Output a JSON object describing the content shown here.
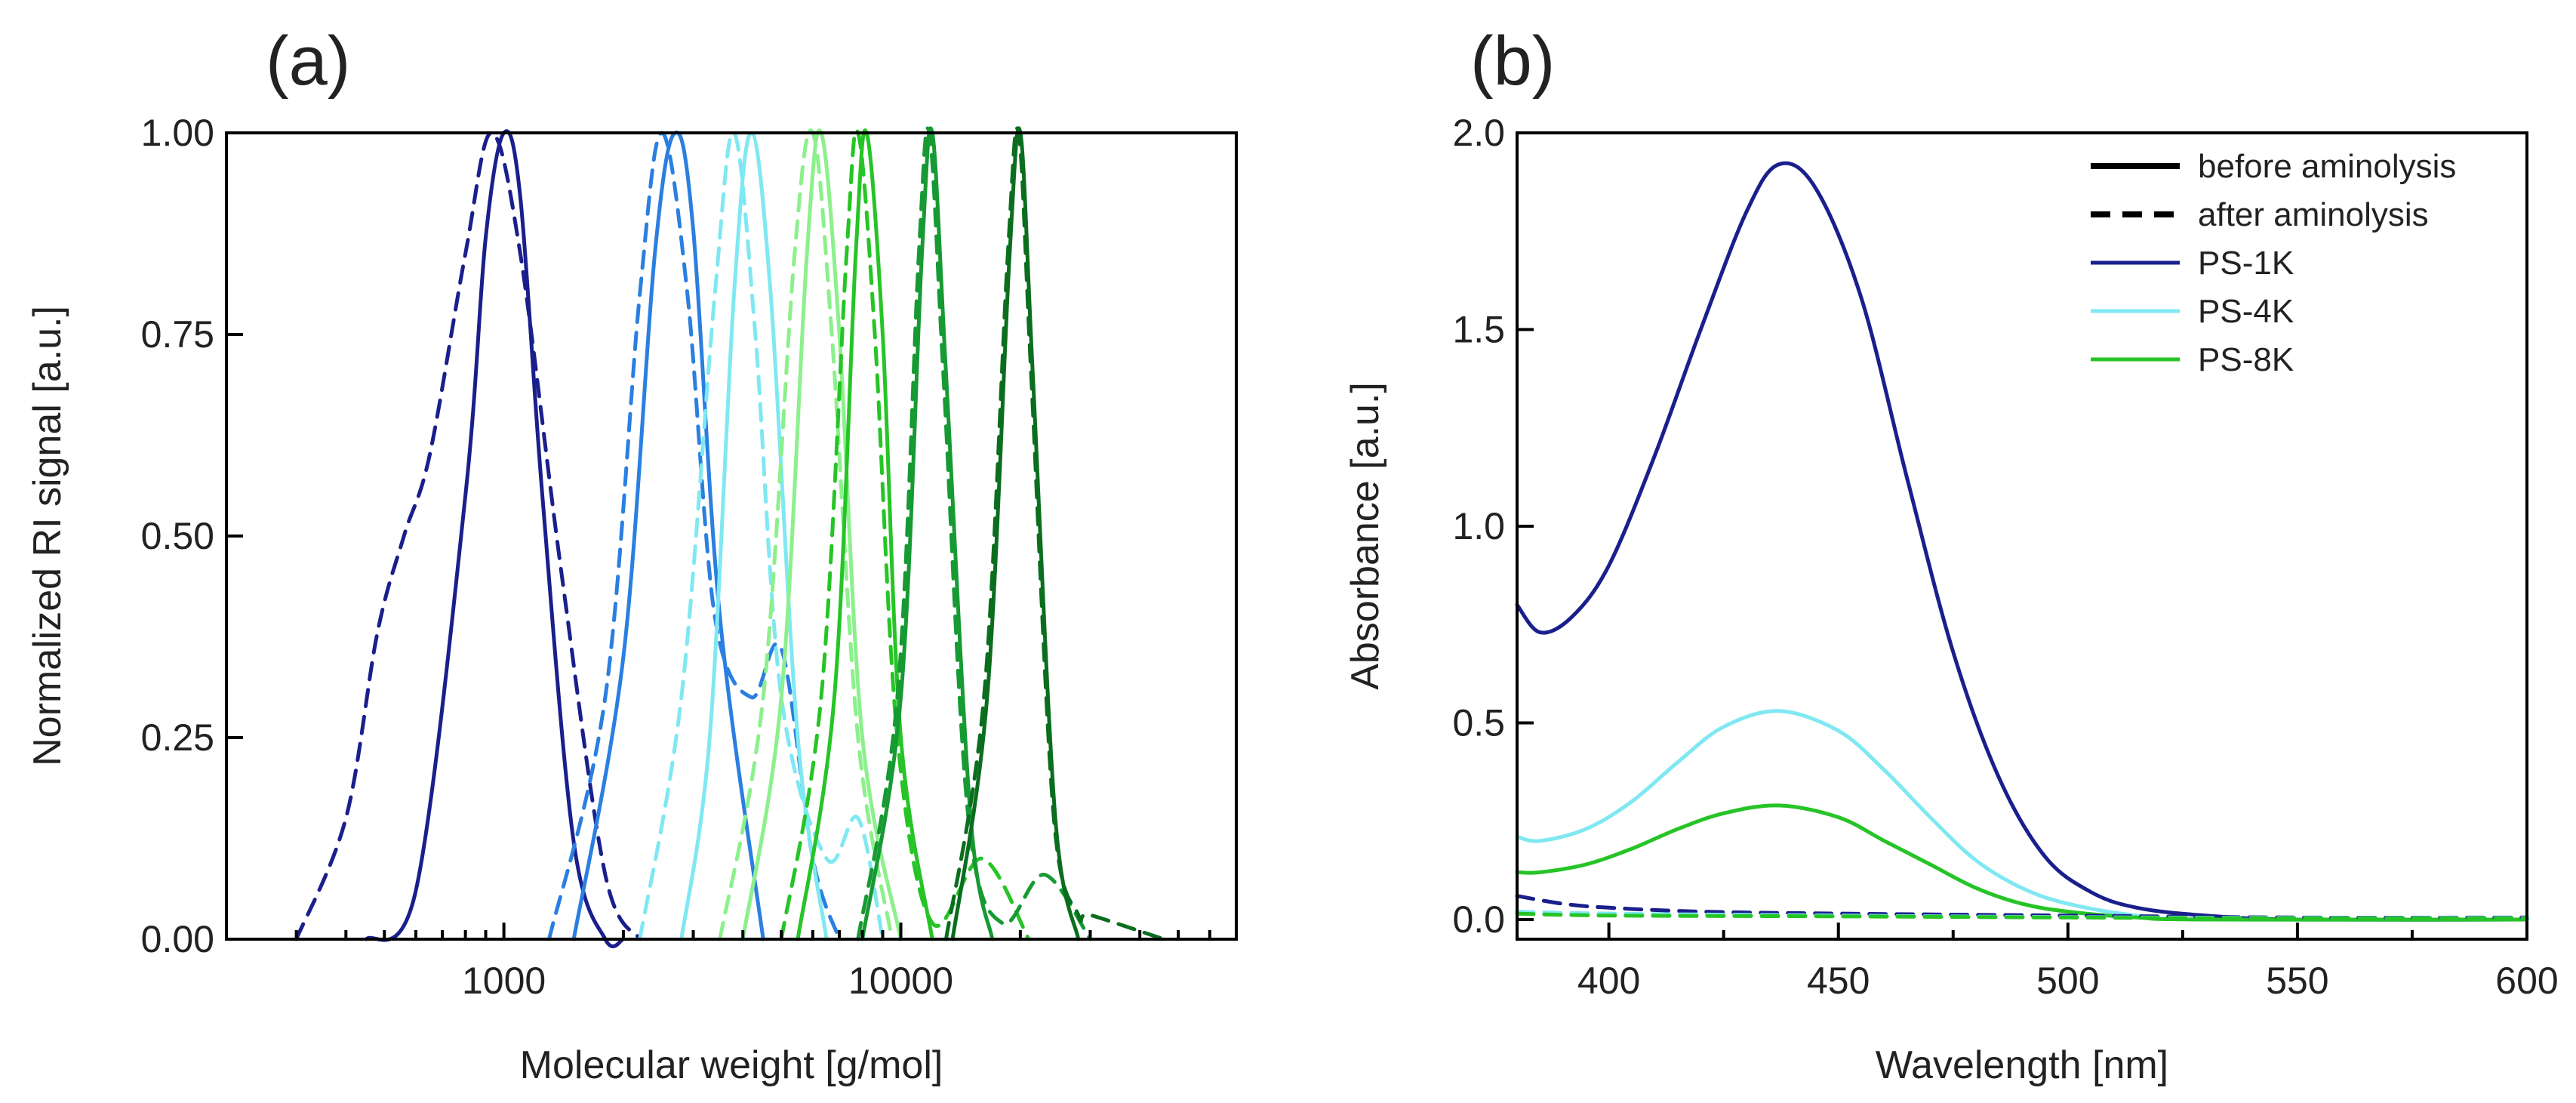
{
  "figure": {
    "panel_a_label": "(a)",
    "panel_b_label": "(b)"
  },
  "colors": {
    "navy": "#1a1f8c",
    "blue": "#2a7fe0",
    "cyan": "#7fe8f2",
    "lightgreen": "#8cf08c",
    "green": "#26c426",
    "midgreen": "#179a33",
    "darkgreen": "#0b6e1e"
  },
  "chart_data": [
    {
      "panel": "(a)",
      "type": "line",
      "xlabel": "Molecular weight [g/mol]",
      "ylabel": "Normalized RI signal [a.u.]",
      "xscale": "log",
      "xlim": [
        200,
        70000
      ],
      "ylim": [
        0,
        1
      ],
      "x_ticks": [
        1000,
        10000
      ],
      "x_tick_labels": [
        "1000",
        "10000"
      ],
      "y_ticks": [
        0,
        0.25,
        0.5,
        0.75,
        1.0
      ],
      "y_tick_labels": [
        "0.00",
        "0.25",
        "0.50",
        "0.75",
        "1.00"
      ],
      "grid": false,
      "line_styles": [
        "solid",
        "dashed"
      ],
      "series": [
        {
          "style": "solid",
          "color": "navy",
          "peak_mw": 1000,
          "width_decades": 0.085,
          "x": [
            450,
            600,
            800,
            900,
            1000,
            1100,
            1250,
            1500,
            1800,
            2000
          ],
          "y": [
            0.0,
            0.06,
            0.55,
            0.87,
            1.0,
            0.92,
            0.55,
            0.12,
            0.0,
            0.0
          ]
        },
        {
          "style": "dashed",
          "color": "navy",
          "peak_mw": 930,
          "shoulder": "low-mw",
          "x": [
            300,
            400,
            480,
            560,
            650,
            800,
            930,
            1100,
            1400,
            1800,
            2200
          ],
          "y": [
            0.0,
            0.15,
            0.38,
            0.5,
            0.6,
            0.85,
            1.0,
            0.85,
            0.45,
            0.08,
            0.0
          ]
        },
        {
          "style": "solid",
          "color": "blue",
          "peak_mw": 2700,
          "width_decades": 0.09,
          "x": [
            1500,
            2000,
            2400,
            2700,
            3000,
            3500,
            4500
          ],
          "y": [
            0.0,
            0.35,
            0.85,
            1.0,
            0.88,
            0.4,
            0.0
          ]
        },
        {
          "style": "dashed",
          "color": "blue",
          "peak_mw": 2500,
          "secondary_peak_mw": 5000,
          "secondary_height": 0.36,
          "x": [
            1300,
            1800,
            2200,
            2500,
            2900,
            3400,
            4200,
            5000,
            6000,
            7000
          ],
          "y": [
            0.0,
            0.3,
            0.8,
            1.0,
            0.8,
            0.4,
            0.3,
            0.36,
            0.1,
            0.0
          ]
        },
        {
          "style": "solid",
          "color": "cyan",
          "peak_mw": 4200,
          "width_decades": 0.07,
          "x": [
            2800,
            3300,
            3800,
            4200,
            4700,
            5500,
            6500
          ],
          "y": [
            0.0,
            0.25,
            0.8,
            1.0,
            0.8,
            0.25,
            0.0
          ]
        },
        {
          "style": "dashed",
          "color": "cyan",
          "peak_mw": 3800,
          "secondary_peak_mw": 7800,
          "secondary_height": 0.15,
          "x": [
            2200,
            2800,
            3400,
            3800,
            4300,
            5000,
            6500,
            7800,
            9000
          ],
          "y": [
            0.0,
            0.3,
            0.8,
            1.0,
            0.75,
            0.3,
            0.1,
            0.15,
            0.0
          ]
        },
        {
          "style": "solid",
          "color": "lightgreen",
          "peak_mw": 6300,
          "width_decades": 0.07,
          "x": [
            4000,
            5000,
            5800,
            6300,
            7000,
            8000,
            10000
          ],
          "y": [
            0.0,
            0.3,
            0.85,
            1.0,
            0.75,
            0.25,
            0.0
          ]
        },
        {
          "style": "dashed",
          "color": "lightgreen",
          "peak_mw": 6000,
          "x": [
            3500,
            4500,
            5400,
            6000,
            6700,
            7800,
            9500
          ],
          "y": [
            0.0,
            0.3,
            0.85,
            1.0,
            0.75,
            0.25,
            0.0
          ]
        },
        {
          "style": "solid",
          "color": "green",
          "peak_mw": 8200,
          "width_decades": 0.065,
          "x": [
            5500,
            6800,
            7700,
            8200,
            9000,
            10000,
            12000
          ],
          "y": [
            0.0,
            0.3,
            0.85,
            1.0,
            0.75,
            0.25,
            0.0
          ]
        },
        {
          "style": "dashed",
          "color": "green",
          "peak_mw": 7800,
          "secondary_peak_mw": 16000,
          "secondary_height": 0.1,
          "x": [
            5000,
            6300,
            7300,
            7800,
            8600,
            9800,
            12000,
            16000,
            21000
          ],
          "y": [
            0.0,
            0.3,
            0.85,
            1.0,
            0.75,
            0.25,
            0.02,
            0.1,
            0.0
          ]
        },
        {
          "style": "solid",
          "color": "midgreen",
          "peak_mw": 12000,
          "width_decades": 0.06,
          "x": [
            8000,
            10000,
            11300,
            12000,
            13000,
            15000,
            17000
          ],
          "y": [
            0.0,
            0.3,
            0.85,
            1.0,
            0.7,
            0.15,
            0.0
          ]
        },
        {
          "style": "dashed",
          "color": "midgreen",
          "peak_mw": 11800,
          "secondary_peak_mw": 23000,
          "secondary_height": 0.08,
          "x": [
            7800,
            9800,
            11100,
            11800,
            12800,
            14800,
            18000,
            23000,
            30000
          ],
          "y": [
            0.0,
            0.3,
            0.85,
            1.0,
            0.7,
            0.15,
            0.02,
            0.08,
            0.0
          ]
        },
        {
          "style": "solid",
          "color": "darkgreen",
          "peak_mw": 20000,
          "width_decades": 0.055,
          "x": [
            13500,
            16500,
            18800,
            20000,
            21500,
            24500,
            28000
          ],
          "y": [
            0.0,
            0.3,
            0.85,
            1.0,
            0.7,
            0.15,
            0.0
          ]
        },
        {
          "style": "dashed",
          "color": "darkgreen",
          "peak_mw": 19800,
          "secondary_peak_mw": 30000,
          "secondary_height": 0.03,
          "x": [
            13000,
            16200,
            18600,
            19800,
            21300,
            24300,
            28000,
            30000,
            46000
          ],
          "y": [
            0.0,
            0.3,
            0.85,
            1.0,
            0.7,
            0.15,
            0.03,
            0.03,
            0.0
          ]
        }
      ]
    },
    {
      "panel": "(b)",
      "type": "line",
      "xlabel": "Wavelength [nm]",
      "ylabel": "Absorbance [a.u.]",
      "xlim": [
        380,
        600
      ],
      "ylim": [
        -0.05,
        2.0
      ],
      "x_ticks": [
        400,
        450,
        500,
        550,
        600
      ],
      "x_tick_labels": [
        "400",
        "450",
        "500",
        "550",
        "600"
      ],
      "y_ticks": [
        0.0,
        0.5,
        1.0,
        1.5,
        2.0
      ],
      "y_tick_labels": [
        "0.0",
        "0.5",
        "1.0",
        "1.5",
        "2.0"
      ],
      "grid": false,
      "legend": {
        "position": "top-right",
        "entries": [
          {
            "label": "before aminolysis",
            "style": "solid",
            "color": "#000000"
          },
          {
            "label": "after aminolysis",
            "style": "dashed",
            "color": "#000000"
          },
          {
            "label": "PS-1K",
            "style": "solid",
            "color": "navy"
          },
          {
            "label": "PS-4K",
            "style": "solid",
            "color": "cyan"
          },
          {
            "label": "PS-8K",
            "style": "solid",
            "color": "green"
          }
        ]
      },
      "series": [
        {
          "group": "PS-1K",
          "style": "solid",
          "color": "navy",
          "x": [
            380,
            385,
            392,
            400,
            410,
            420,
            430,
            437,
            445,
            455,
            465,
            475,
            485,
            495,
            505,
            515,
            530,
            550,
            600
          ],
          "y": [
            0.8,
            0.73,
            0.77,
            0.9,
            1.18,
            1.5,
            1.8,
            1.92,
            1.86,
            1.58,
            1.12,
            0.68,
            0.36,
            0.16,
            0.07,
            0.03,
            0.01,
            0.0,
            0.0
          ]
        },
        {
          "group": "PS-4K",
          "style": "solid",
          "color": "cyan",
          "x": [
            380,
            385,
            395,
            405,
            415,
            425,
            437,
            450,
            460,
            470,
            480,
            490,
            500,
            515,
            530,
            600
          ],
          "y": [
            0.21,
            0.2,
            0.23,
            0.3,
            0.4,
            0.49,
            0.53,
            0.48,
            0.38,
            0.26,
            0.15,
            0.08,
            0.04,
            0.01,
            0.0,
            0.0
          ]
        },
        {
          "group": "PS-8K",
          "style": "solid",
          "color": "green",
          "x": [
            380,
            385,
            395,
            405,
            415,
            425,
            437,
            450,
            460,
            470,
            480,
            490,
            500,
            515,
            530,
            600
          ],
          "y": [
            0.12,
            0.12,
            0.14,
            0.18,
            0.23,
            0.27,
            0.29,
            0.26,
            0.2,
            0.14,
            0.08,
            0.04,
            0.02,
            0.005,
            0.0,
            0.0
          ]
        },
        {
          "group": "PS-1K",
          "style": "dashed",
          "color": "navy",
          "x": [
            380,
            390,
            400,
            420,
            450,
            500,
            550,
            600
          ],
          "y": [
            0.06,
            0.04,
            0.03,
            0.02,
            0.015,
            0.01,
            0.005,
            0.005
          ]
        },
        {
          "group": "PS-4K",
          "style": "dashed",
          "color": "cyan",
          "x": [
            380,
            400,
            450,
            500,
            550,
            600
          ],
          "y": [
            0.02,
            0.015,
            0.01,
            0.006,
            0.004,
            0.004
          ]
        },
        {
          "group": "PS-8K",
          "style": "dashed",
          "color": "green",
          "x": [
            380,
            400,
            450,
            500,
            550,
            600
          ],
          "y": [
            0.015,
            0.01,
            0.008,
            0.005,
            0.003,
            0.003
          ]
        }
      ]
    }
  ]
}
